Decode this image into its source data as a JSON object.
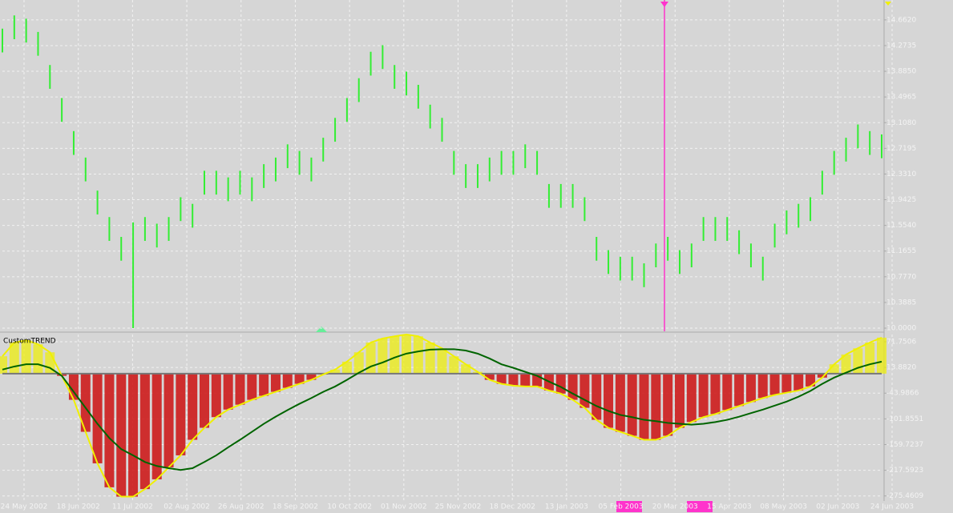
{
  "chart_data": [
    {
      "type": "bar-range",
      "color": "#33ee33",
      "grid": true,
      "ylim": [
        9.976,
        14.963
      ],
      "yticks": [
        {
          "value": 14.662,
          "label": "14.6620"
        },
        {
          "value": 14.2735,
          "label": "14.2735"
        },
        {
          "value": 13.885,
          "label": "13.8850"
        },
        {
          "value": 13.4965,
          "label": "13.4965"
        },
        {
          "value": 13.108,
          "label": "13.1080"
        },
        {
          "value": 12.7195,
          "label": "12.7195"
        },
        {
          "value": 12.331,
          "label": "12.3310"
        },
        {
          "value": 11.9425,
          "label": "11.9425"
        },
        {
          "value": 11.554,
          "label": "11.5540"
        },
        {
          "value": 11.1655,
          "label": "11.1655"
        },
        {
          "value": 10.777,
          "label": "10.7770"
        },
        {
          "value": 10.3885,
          "label": "10.3885"
        },
        {
          "value": 10,
          "label": "10.0000"
        }
      ],
      "date_labels": [
        "24 May 2002",
        "18 Jun 2002",
        "11 Jul 2002",
        "02 Aug 2002",
        "26 Aug 2002",
        "18 Sep 2002",
        "10 Oct 2002",
        "01 Nov 2002",
        "25 Nov 2002",
        "18 Dec 2002",
        "13 Jan 2003",
        "05 Feb 2003",
        "20 Mar 2003",
        "15 Apr 2003",
        "08 May 2003",
        "02 Jun 2003",
        "24 Jun 2003"
      ],
      "high": [
        14.53,
        14.73,
        14.68,
        14.48,
        13.98,
        13.48,
        12.98,
        12.58,
        12.08,
        11.68,
        11.38,
        11.6,
        11.68,
        11.58,
        11.68,
        11.98,
        11.88,
        12.38,
        12.38,
        12.28,
        12.38,
        12.28,
        12.48,
        12.58,
        12.78,
        12.68,
        12.58,
        12.88,
        13.18,
        13.48,
        13.78,
        14.18,
        14.28,
        13.98,
        13.88,
        13.68,
        13.38,
        13.18,
        12.68,
        12.48,
        12.48,
        12.58,
        12.68,
        12.68,
        12.78,
        12.68,
        12.18,
        12.18,
        12.18,
        11.98,
        11.38,
        11.18,
        11.08,
        11.08,
        10.98,
        11.28,
        11.38,
        11.18,
        11.28,
        11.68,
        11.68,
        11.68,
        11.48,
        11.28,
        11.08,
        11.58,
        11.78,
        11.88,
        11.98,
        12.38,
        12.68,
        12.88,
        13.08,
        12.98,
        12.93
      ],
      "low": [
        14.17,
        14.37,
        14.32,
        14.12,
        13.62,
        13.12,
        12.62,
        12.22,
        11.72,
        11.32,
        11.02,
        10.0,
        11.32,
        11.22,
        11.32,
        11.62,
        11.52,
        12.02,
        12.02,
        11.92,
        12.02,
        11.92,
        12.12,
        12.22,
        12.42,
        12.32,
        12.22,
        12.52,
        12.82,
        13.12,
        13.42,
        13.82,
        13.92,
        13.62,
        13.52,
        13.32,
        13.02,
        12.82,
        12.32,
        12.12,
        12.12,
        12.22,
        12.32,
        12.32,
        12.42,
        12.32,
        11.82,
        11.82,
        11.82,
        11.62,
        11.02,
        10.82,
        10.72,
        10.72,
        10.62,
        10.92,
        11.02,
        10.82,
        10.92,
        11.32,
        11.32,
        11.32,
        11.12,
        10.92,
        10.72,
        11.22,
        11.42,
        11.52,
        11.62,
        12.02,
        12.32,
        12.52,
        12.72,
        12.62,
        12.57
      ]
    },
    {
      "type": "line",
      "title": "CustomTREND",
      "grid": true,
      "ylim": [
        -285,
        88
      ],
      "yticks": [
        {
          "value": 71.7506,
          "label": "71.7506"
        },
        {
          "value": 13.882,
          "label": "13.8820"
        },
        {
          "value": -43.9866,
          "label": "-43.9866"
        },
        {
          "value": -101.8551,
          "label": "-101.8551"
        },
        {
          "value": -159.7237,
          "label": "-159.7237"
        },
        {
          "value": -217.5923,
          "label": "-217.5923"
        },
        {
          "value": -275.4609,
          "label": "-275.4609"
        }
      ],
      "series": [
        {
          "color": "#f0f000",
          "values": [
            39,
            70,
            75,
            66,
            48,
            -5,
            -59,
            -131,
            -202,
            -256,
            -277,
            -277,
            -260,
            -238,
            -211,
            -184,
            -149,
            -122,
            -98,
            -81,
            -70,
            -59,
            -50,
            -41,
            -32,
            -23,
            -14,
            -2,
            9,
            27,
            48,
            70,
            79,
            84,
            88,
            84,
            70,
            57,
            39,
            21,
            4,
            -14,
            -23,
            -27,
            -29,
            -29,
            -38,
            -45,
            -59,
            -77,
            -104,
            -122,
            -131,
            -140,
            -149,
            -149,
            -140,
            -122,
            -109,
            -98,
            -91,
            -82,
            -73,
            -64,
            -55,
            -48,
            -43,
            -38,
            -29,
            -9,
            21,
            43,
            57,
            70,
            81
          ]
        },
        {
          "color": "#006400",
          "values": [
            9,
            16,
            21,
            21,
            13,
            -5,
            -41,
            -77,
            -113,
            -145,
            -170,
            -184,
            -199,
            -208,
            -213,
            -217,
            -213,
            -199,
            -184,
            -166,
            -149,
            -131,
            -113,
            -97,
            -82,
            -68,
            -55,
            -41,
            -29,
            -14,
            2,
            16,
            25,
            36,
            45,
            50,
            54,
            55,
            55,
            52,
            45,
            34,
            21,
            13,
            4,
            -5,
            -18,
            -30,
            -45,
            -59,
            -73,
            -84,
            -93,
            -98,
            -104,
            -107,
            -111,
            -113,
            -115,
            -113,
            -109,
            -104,
            -97,
            -89,
            -81,
            -72,
            -63,
            -52,
            -39,
            -23,
            -9,
            2,
            13,
            21,
            27
          ]
        }
      ]
    }
  ]
}
